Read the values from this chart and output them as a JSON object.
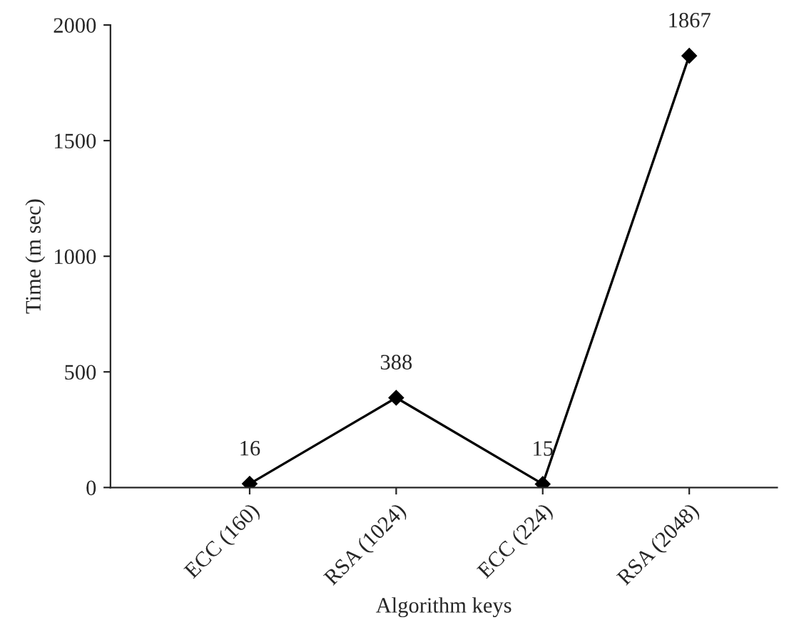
{
  "chart_data": {
    "type": "line",
    "xlabel": "Algorithm keys",
    "ylabel": "Time (m sec)",
    "categories": [
      "ECC (160)",
      "RSA (1024)",
      "ECC (224)",
      "RSA (2048)"
    ],
    "series": [
      {
        "color": "#000000",
        "values": [
          16,
          388,
          15,
          1867
        ]
      }
    ],
    "ylim": [
      0,
      2000
    ],
    "yticks": [
      0,
      500,
      1000,
      1500,
      2000
    ],
    "marker": "diamond",
    "line_style": "solid",
    "data_labels": true,
    "grid": false,
    "legend": false
  }
}
